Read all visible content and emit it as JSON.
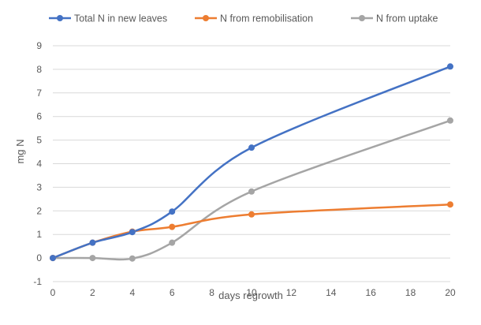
{
  "chart_data": {
    "type": "line",
    "xlabel": "days regrowth",
    "ylabel": "mg N",
    "xlim": [
      0,
      20
    ],
    "ylim": [
      -1,
      9
    ],
    "x_ticks": [
      0,
      2,
      4,
      6,
      8,
      10,
      12,
      14,
      16,
      18,
      20
    ],
    "y_ticks": [
      -1,
      0,
      1,
      2,
      3,
      4,
      5,
      6,
      7,
      8,
      9
    ],
    "grid": "horizontal",
    "legend_position": "top",
    "smooth_lines": true,
    "series": [
      {
        "name": "Total N in new leaves",
        "color": "#4472c4",
        "x": [
          0,
          2,
          4,
          6,
          10,
          20
        ],
        "y": [
          0,
          0.65,
          1.1,
          1.97,
          4.68,
          8.12
        ]
      },
      {
        "name": "N from remobilisation",
        "color": "#ed7d31",
        "x": [
          0,
          2,
          4,
          6,
          10,
          20
        ],
        "y": [
          0,
          0.65,
          1.12,
          1.32,
          1.85,
          2.27
        ]
      },
      {
        "name": "N from uptake",
        "color": "#a5a5a5",
        "x": [
          0,
          2,
          4,
          6,
          10,
          20
        ],
        "y": [
          0,
          0,
          -0.02,
          0.65,
          2.82,
          5.83
        ]
      }
    ]
  }
}
